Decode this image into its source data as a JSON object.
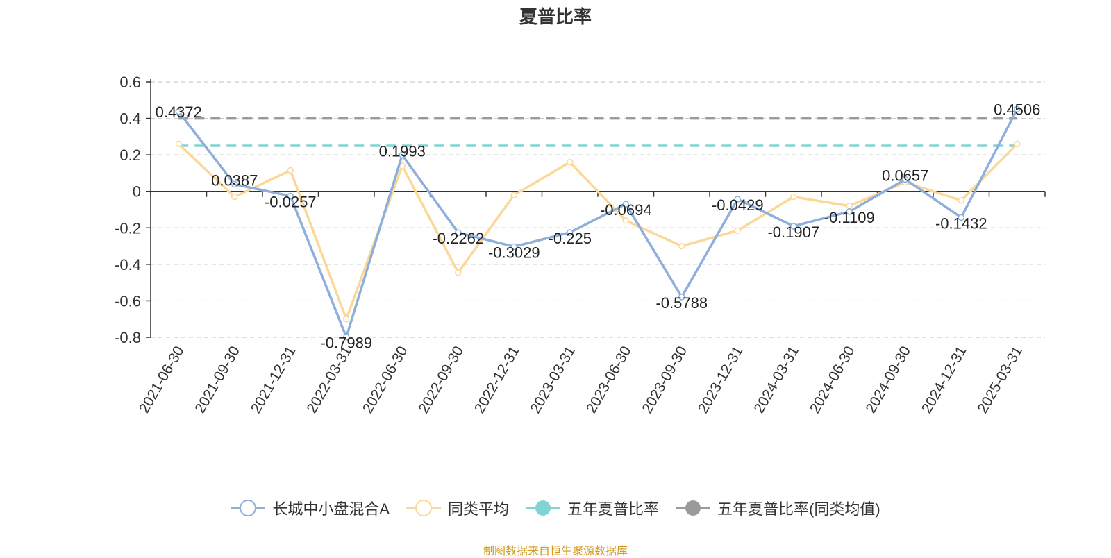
{
  "chart_data": {
    "type": "line",
    "title": "夏普比率",
    "categories": [
      "2021-06-30",
      "2021-09-30",
      "2021-12-31",
      "2022-03-31",
      "2022-06-30",
      "2022-09-30",
      "2022-12-31",
      "2023-03-31",
      "2023-06-30",
      "2023-09-30",
      "2023-12-31",
      "2024-03-31",
      "2024-06-30",
      "2024-09-30",
      "2024-12-31",
      "2025-03-31"
    ],
    "y_ticks": [
      "0.6",
      "0.4",
      "0.2",
      "0",
      "-0.2",
      "-0.4",
      "-0.6",
      "-0.8"
    ],
    "ylim": [
      -0.8,
      0.6
    ],
    "grid": true,
    "legend_position": "bottom",
    "series": [
      {
        "name": "长城中小盘混合A",
        "color": "#8eaedb",
        "values": [
          0.4372,
          0.0387,
          -0.0257,
          -0.7989,
          0.1993,
          -0.2262,
          -0.3029,
          -0.225,
          -0.0694,
          -0.5788,
          -0.0429,
          -0.1907,
          -0.1109,
          0.0657,
          -0.1432,
          0.4506
        ],
        "labels": [
          "0.4372",
          "0.0387",
          "-0.0257",
          "-0.7989",
          "0.1993",
          "-0.2262",
          "-0.3029",
          "-0.225",
          "-0.0694",
          "-0.5788",
          "-0.0429",
          "-0.1907",
          "-0.1109",
          "0.0657",
          "-0.1432",
          "0.4506"
        ]
      },
      {
        "name": "同类平均",
        "color": "#fcd898",
        "values": [
          0.26,
          -0.03,
          0.115,
          -0.7,
          0.14,
          -0.445,
          -0.02,
          0.16,
          -0.16,
          -0.3,
          -0.215,
          -0.03,
          -0.08,
          0.05,
          -0.05,
          0.26
        ]
      }
    ],
    "reference_lines": [
      {
        "name": "五年夏普比率",
        "color": "#80d4d4",
        "value": 0.25
      },
      {
        "name": "五年夏普比率(同类均值)",
        "color": "#9a9a9a",
        "value": 0.4
      }
    ]
  },
  "source": {
    "text": "制图数据来自恒生聚源数据库",
    "color": "#d29a1e"
  }
}
